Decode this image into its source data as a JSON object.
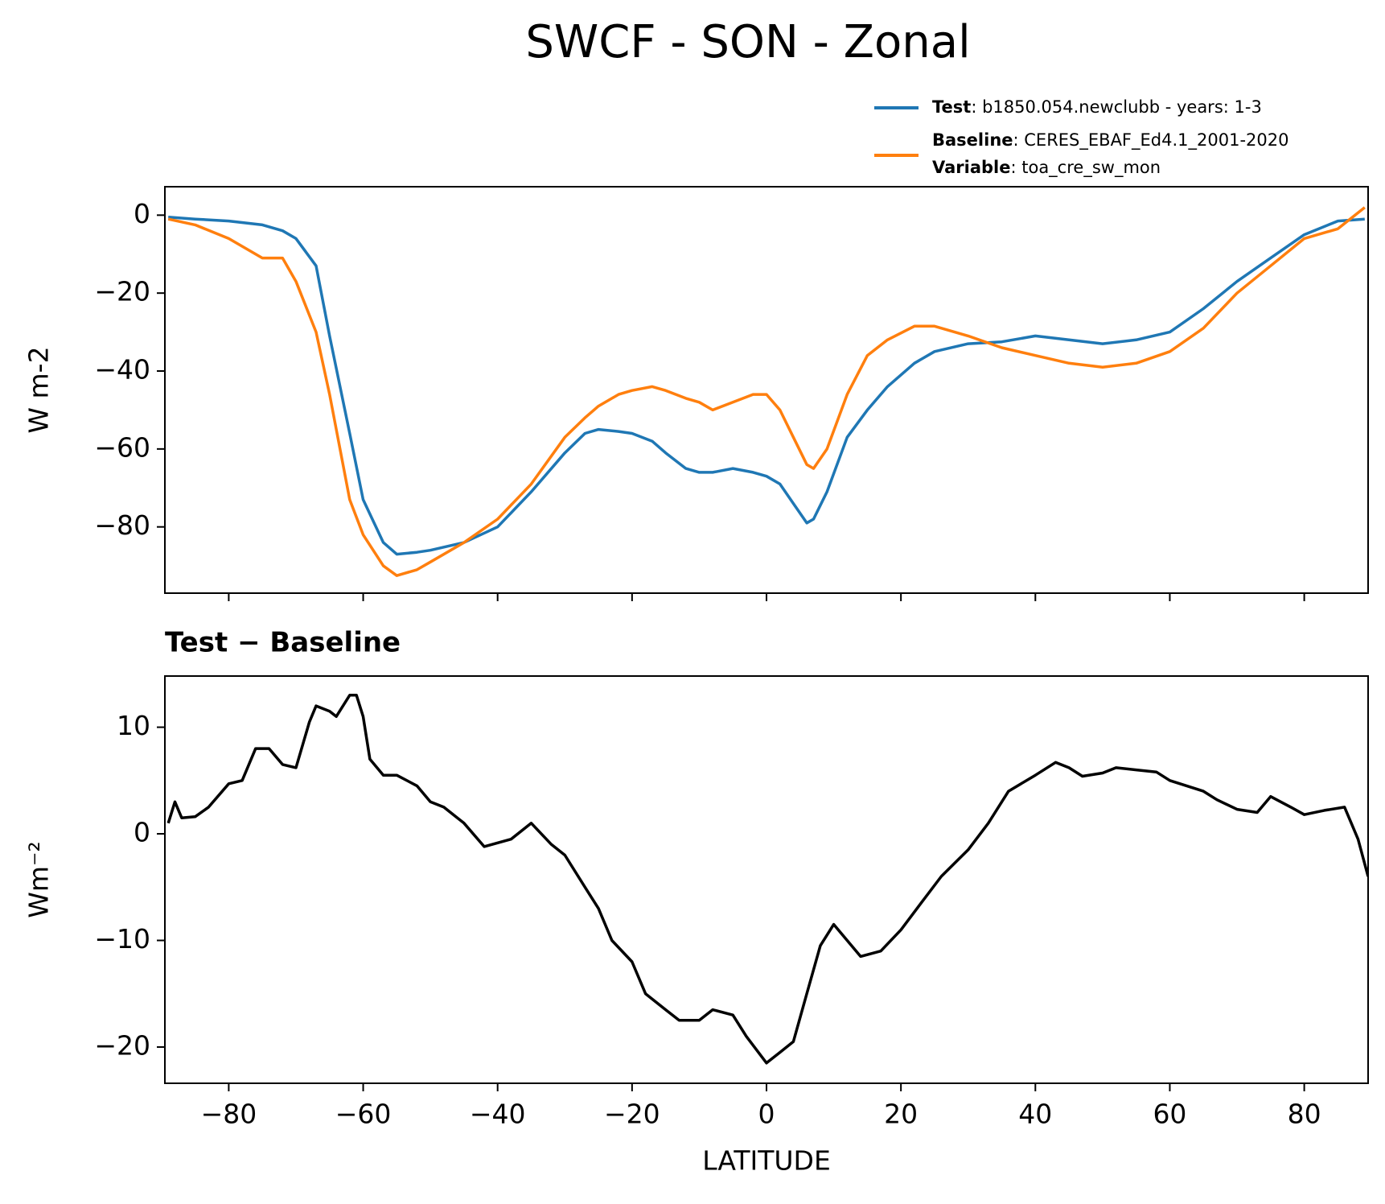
{
  "title": "SWCF - SON - Zonal",
  "chart_data": [
    {
      "type": "line",
      "ylabel": "W m-2",
      "xtick_labels": false,
      "x": [
        -89,
        -85,
        -80,
        -75,
        -72,
        -70,
        -67,
        -65,
        -62,
        -60,
        -57,
        -55,
        -52,
        -50,
        -45,
        -40,
        -35,
        -30,
        -27,
        -25,
        -22,
        -20,
        -17,
        -15,
        -12,
        -10,
        -8,
        -5,
        -2,
        0,
        2,
        4,
        6,
        7,
        9,
        12,
        15,
        18,
        22,
        25,
        30,
        35,
        40,
        45,
        50,
        55,
        60,
        65,
        70,
        75,
        80,
        85,
        89
      ],
      "series": [
        {
          "name": "Test",
          "legend_text": ": b1850.054.newclubb - years: 1-3",
          "color": "#1f77b4",
          "values": [
            -0.5,
            -1,
            -1.5,
            -2.5,
            -4,
            -6,
            -13,
            -31,
            -56,
            -73,
            -84,
            -87,
            -86.5,
            -86,
            -84,
            -80,
            -71,
            -61,
            -56,
            -55,
            -55.5,
            -56,
            -58,
            -61,
            -65,
            -66,
            -66,
            -65,
            -66,
            -67,
            -69,
            -74,
            -79,
            -78,
            -71,
            -57,
            -50,
            -44,
            -38,
            -35,
            -33,
            -32.5,
            -31,
            -32,
            -33,
            -32,
            -30,
            -24,
            -17,
            -11,
            -5,
            -1.5,
            -1
          ]
        },
        {
          "name": "Baseline",
          "legend_text": ": CERES_EBAF_Ed4.1_2001-2020",
          "color": "#ff7f0e",
          "values": [
            -1,
            -2.5,
            -6,
            -11,
            -11,
            -17,
            -30,
            -46,
            -73,
            -82,
            -90,
            -92.5,
            -91,
            -89,
            -84,
            -78,
            -69,
            -57,
            -52,
            -49,
            -46,
            -45,
            -44,
            -45,
            -47,
            -48,
            -50,
            -48,
            -46,
            -46,
            -50,
            -57,
            -64,
            -65,
            -60,
            -46,
            -36,
            -32,
            -28.5,
            -28.5,
            -31,
            -34,
            -36,
            -38,
            -39,
            -38,
            -35,
            -29,
            -20,
            -13,
            -6,
            -3.5,
            2
          ]
        }
      ],
      "legend_extra": {
        "label": "Variable",
        "text": ": toa_cre_sw_mon"
      },
      "xlim": [
        -89.5,
        89.5
      ],
      "ylim": [
        -97,
        7.3
      ],
      "xticks": [
        -80,
        -60,
        -40,
        -20,
        0,
        20,
        40,
        60,
        80
      ],
      "yticks": [
        {
          "value": -80,
          "label": "−80"
        },
        {
          "value": -60,
          "label": "−60"
        },
        {
          "value": -40,
          "label": "−40"
        },
        {
          "value": -20,
          "label": "−20"
        },
        0
      ]
    },
    {
      "type": "line",
      "title": "Test − Baseline",
      "xlabel": "LATITUDE",
      "ylabel": "Wm⁻²",
      "xtick_labels": true,
      "x": [
        -89,
        -88,
        -87,
        -85,
        -83,
        -80,
        -78,
        -76,
        -74,
        -72,
        -70,
        -68,
        -67,
        -65,
        -64,
        -62,
        -61,
        -60,
        -59,
        -57,
        -55,
        -52,
        -50,
        -48,
        -45,
        -42,
        -38,
        -35,
        -32,
        -30,
        -27,
        -25,
        -23,
        -20,
        -18,
        -15,
        -13,
        -10,
        -8,
        -5,
        -3,
        0,
        2,
        4,
        6,
        8,
        10,
        12,
        14,
        17,
        20,
        23,
        26,
        30,
        33,
        36,
        40,
        43,
        45,
        47,
        50,
        52,
        55,
        58,
        60,
        65,
        67,
        70,
        73,
        75,
        78,
        80,
        83,
        86,
        88,
        89.5
      ],
      "series": [
        {
          "color": "#000000",
          "values": [
            1,
            3,
            1.5,
            1.6,
            2.5,
            4.7,
            5,
            8,
            8,
            6.5,
            6.2,
            10.5,
            12,
            11.5,
            11,
            13,
            13,
            11,
            7,
            5.5,
            5.5,
            4.5,
            3,
            2.5,
            1,
            -1.2,
            -0.5,
            1,
            -1,
            -2,
            -5,
            -7,
            -10,
            -12,
            -15,
            -16.5,
            -17.5,
            -17.5,
            -16.5,
            -17,
            -19,
            -21.5,
            -20.5,
            -19.5,
            -15,
            -10.5,
            -8.5,
            -10,
            -11.5,
            -11,
            -9,
            -6.5,
            -4,
            -1.5,
            1,
            4,
            5.5,
            6.7,
            6.2,
            5.4,
            5.7,
            6.2,
            6,
            5.8,
            5,
            4,
            3.2,
            2.3,
            2,
            3.5,
            2.5,
            1.8,
            2.2,
            2.5,
            -0.5,
            -4
          ]
        }
      ],
      "xlim": [
        -89.5,
        89.5
      ],
      "ylim": [
        -23.4,
        14.8
      ],
      "xticks": [
        {
          "value": -80,
          "label": "−80"
        },
        {
          "value": -60,
          "label": "−60"
        },
        {
          "value": -40,
          "label": "−40"
        },
        {
          "value": -20,
          "label": "−20"
        },
        0,
        20,
        40,
        60,
        80
      ],
      "yticks": [
        {
          "value": -20,
          "label": "−20"
        },
        {
          "value": -10,
          "label": "−10"
        },
        0,
        10
      ]
    }
  ]
}
